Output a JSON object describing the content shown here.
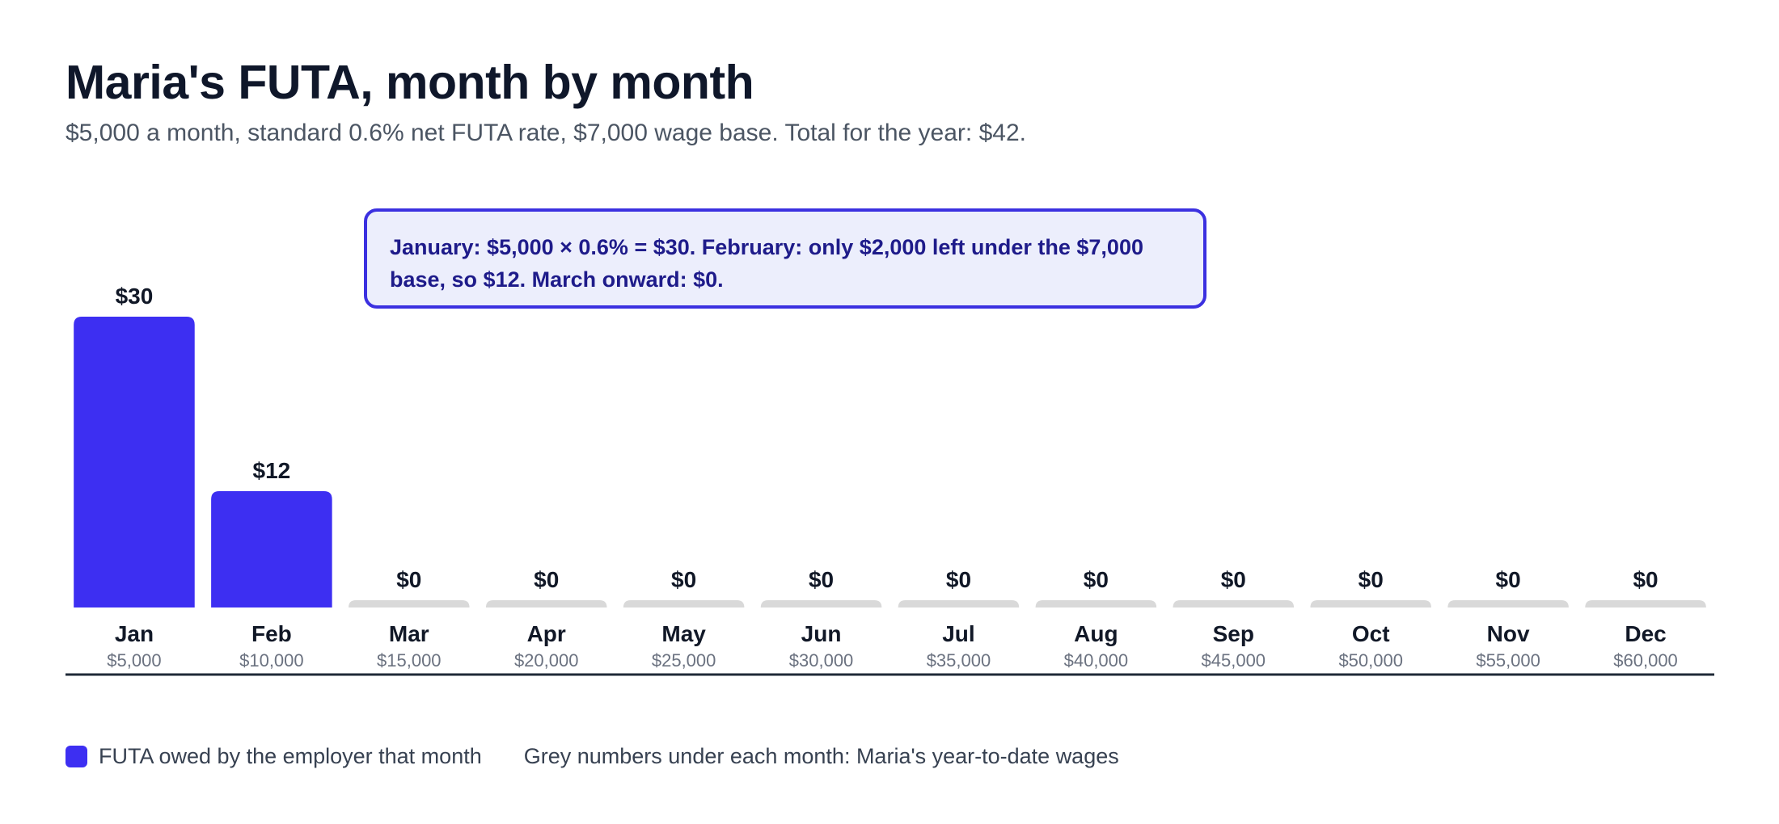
{
  "header": {
    "title": "Maria's FUTA, month by month",
    "subtitle": "$5,000 a month, standard 0.6% net FUTA rate, $7,000 wage base. Total for the year: $42."
  },
  "callout": {
    "text": "January: $5,000 × 0.6% = $30. February: only $2,000 left under the $7,000 base, so $12. March onward: $0."
  },
  "legend": {
    "series_label": "FUTA owed by the employer that month",
    "note": "Grey numbers under each month: Maria's year-to-date wages"
  },
  "colors": {
    "bar": "#3d2ff2",
    "zero_bar": "#d9d9d9",
    "axis": "#1f2937",
    "callout_border": "#3b30e0",
    "callout_bg": "#eceefc"
  },
  "chart_data": {
    "type": "bar",
    "categories": [
      "Jan",
      "Feb",
      "Mar",
      "Apr",
      "May",
      "Jun",
      "Jul",
      "Aug",
      "Sep",
      "Oct",
      "Nov",
      "Dec"
    ],
    "values": [
      30,
      12,
      0,
      0,
      0,
      0,
      0,
      0,
      0,
      0,
      0,
      0
    ],
    "value_labels": [
      "$30",
      "$12",
      "$0",
      "$0",
      "$0",
      "$0",
      "$0",
      "$0",
      "$0",
      "$0",
      "$0",
      "$0"
    ],
    "ytd_wages_labels": [
      "$5,000",
      "$10,000",
      "$15,000",
      "$20,000",
      "$25,000",
      "$30,000",
      "$35,000",
      "$40,000",
      "$45,000",
      "$50,000",
      "$55,000",
      "$60,000"
    ],
    "series": [
      {
        "name": "FUTA owed by the employer that month",
        "values": [
          30,
          12,
          0,
          0,
          0,
          0,
          0,
          0,
          0,
          0,
          0,
          0
        ]
      }
    ],
    "ylim": [
      0,
      30
    ],
    "grid": false,
    "legend_position": "bottom-left"
  }
}
